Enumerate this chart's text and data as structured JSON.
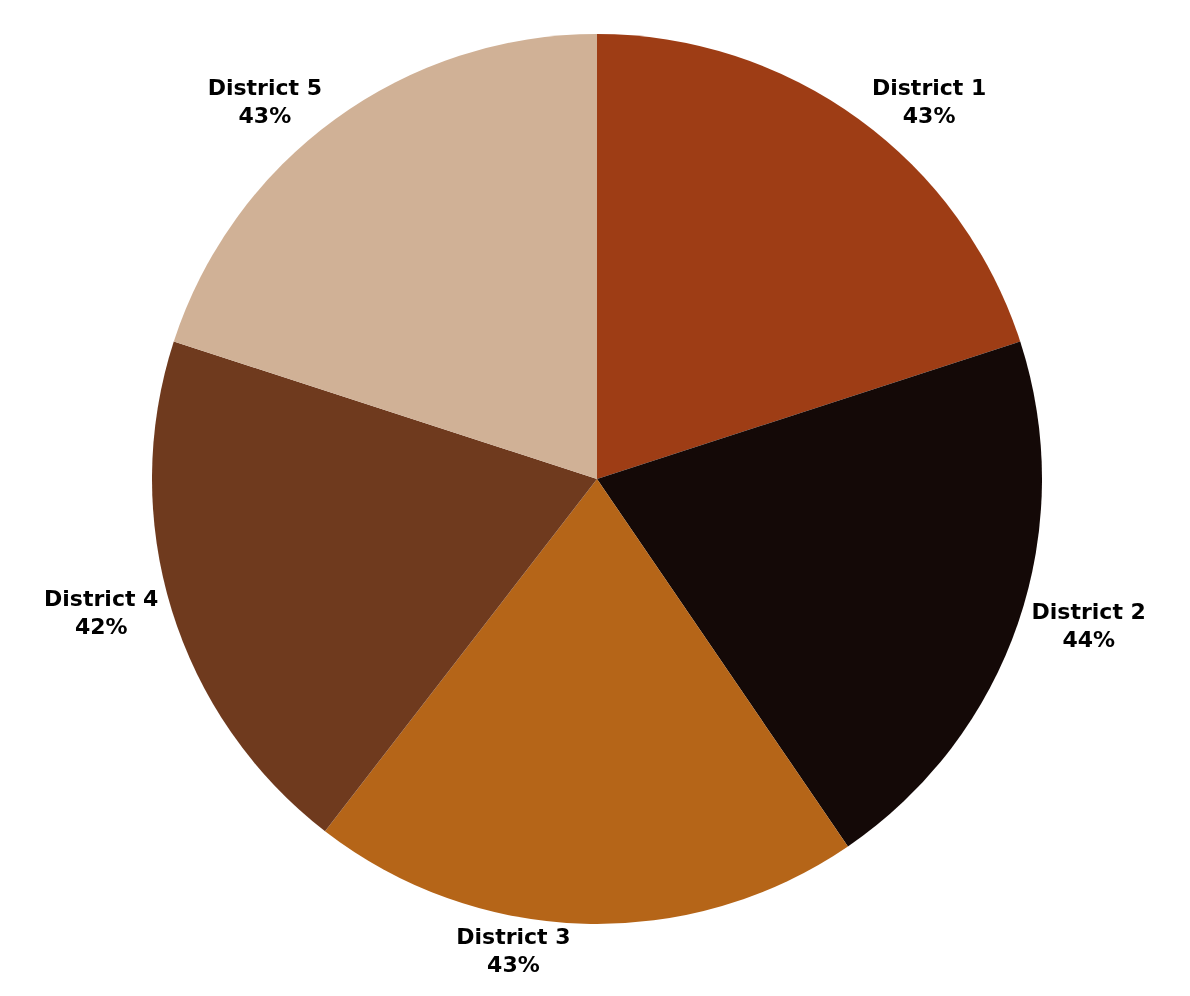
{
  "chart_data": {
    "type": "pie",
    "categories": [
      "District 1",
      "District 2",
      "District 3",
      "District 4",
      "District 5"
    ],
    "values": [
      43,
      44,
      43,
      42,
      43
    ],
    "value_labels": [
      "43%",
      "44%",
      "43%",
      "42%",
      "43%"
    ],
    "colors": [
      "#9e3d15",
      "#140907",
      "#b56518",
      "#6f3a1e",
      "#d0b196"
    ],
    "legend": false
  }
}
